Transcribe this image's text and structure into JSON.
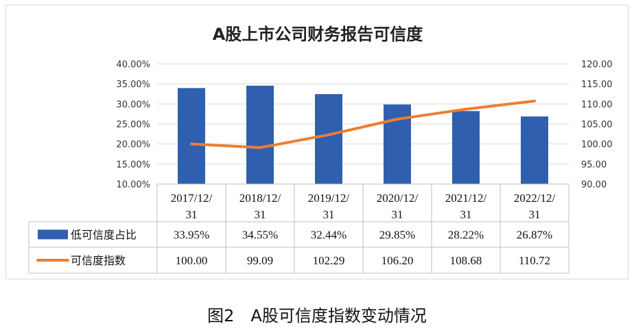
{
  "chart_data": {
    "type": "bar",
    "title": "A股上市公司财务报告可信度",
    "categories": [
      "2017/12/\n31",
      "2018/12/\n31",
      "2019/12/\n31",
      "2020/12/\n31",
      "2021/12/\n31",
      "2022/12/\n31"
    ],
    "series": [
      {
        "name": "低可信度占比",
        "type": "bar",
        "axis": "left",
        "color": "#2f5fae",
        "values": [
          33.95,
          34.55,
          32.44,
          29.85,
          28.22,
          26.87
        ],
        "labels": [
          "33.95%",
          "34.55%",
          "32.44%",
          "29.85%",
          "28.22%",
          "26.87%"
        ]
      },
      {
        "name": "可信度指数",
        "type": "line",
        "axis": "right",
        "color": "#ed7d31",
        "values": [
          100.0,
          99.09,
          102.29,
          106.2,
          108.68,
          110.72
        ],
        "labels": [
          "100.00",
          "99.09",
          "102.29",
          "106.20",
          "108.68",
          "110.72"
        ]
      }
    ],
    "y_left": {
      "min": 10,
      "max": 40,
      "step": 5,
      "ticks": [
        "10.00%",
        "15.00%",
        "20.00%",
        "25.00%",
        "30.00%",
        "35.00%",
        "40.00%"
      ]
    },
    "y_right": {
      "min": 90,
      "max": 120,
      "step": 5,
      "ticks": [
        "90.00",
        "95.00",
        "100.00",
        "105.00",
        "110.00",
        "115.00",
        "120.00"
      ]
    },
    "grid": true,
    "data_table": true
  },
  "caption": "图2　A股可信度指数变动情况"
}
